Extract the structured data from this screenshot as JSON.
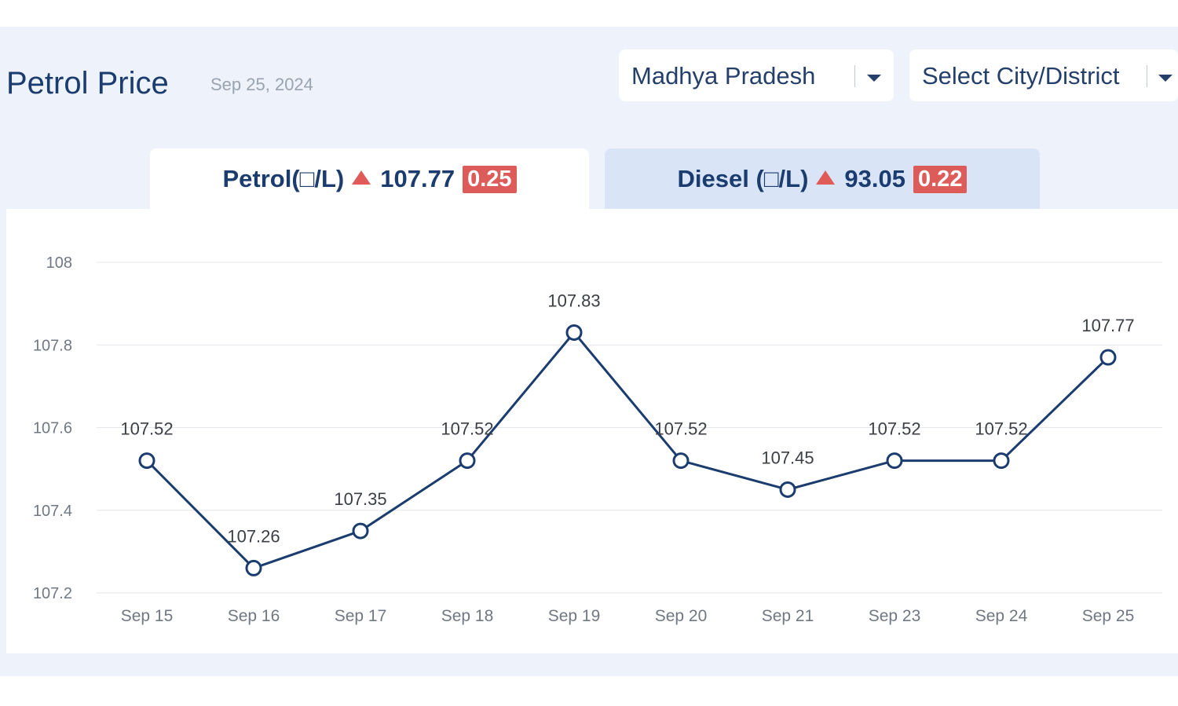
{
  "header": {
    "title": "Petrol Price",
    "date": "Sep 25, 2024"
  },
  "filters": {
    "state": "Madhya Pradesh",
    "city": "Select City/District"
  },
  "tabs": {
    "petrol": {
      "label": "Petrol(□/L)",
      "price": "107.77",
      "change": "0.25"
    },
    "diesel": {
      "label": "Diesel (□/L)",
      "price": "93.05",
      "change": "0.22"
    }
  },
  "colors": {
    "line": "#1b3c6e",
    "badge": "#dd5b58",
    "grid": "#e3e6ea",
    "panel": "#edf2fb"
  },
  "icons": [
    "chevron-down-icon",
    "triangle-up-icon"
  ],
  "chart_data": {
    "type": "line",
    "title": "",
    "xlabel": "",
    "ylabel": "",
    "categories": [
      "Sep 15",
      "Sep 16",
      "Sep 17",
      "Sep 18",
      "Sep 19",
      "Sep 20",
      "Sep 21",
      "Sep 23",
      "Sep 24",
      "Sep 25"
    ],
    "values": [
      107.52,
      107.26,
      107.35,
      107.52,
      107.83,
      107.52,
      107.45,
      107.52,
      107.52,
      107.77
    ],
    "data_labels": [
      "107.52",
      "107.26",
      "107.35",
      "107.52",
      "107.83",
      "107.52",
      "107.45",
      "107.52",
      "107.52",
      "107.77"
    ],
    "ylim": [
      107.2,
      108
    ],
    "yticks": [
      "107.2",
      "107.4",
      "107.6",
      "107.8",
      "108"
    ],
    "grid": true,
    "legend": "none"
  }
}
